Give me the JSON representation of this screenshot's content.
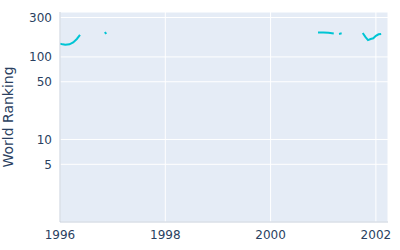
{
  "chart_data": {
    "type": "line",
    "y_label": "World Ranking",
    "log": "y",
    "grid": true,
    "color": "#00c5d4",
    "x": [
      1996.0,
      1996.05,
      1996.1,
      1996.18,
      1996.25,
      1996.32,
      1996.38,
      1996.6,
      1996.85,
      1996.88,
      1998.9,
      2000.9,
      2001.0,
      2001.1,
      2001.2,
      2001.25,
      2001.3,
      2001.35,
      2001.55,
      2001.75,
      2001.8,
      2001.85,
      2001.9,
      2001.95,
      2002.0,
      2002.05,
      2002.1
    ],
    "values": [
      145,
      142,
      140,
      142,
      150,
      165,
      185,
      null,
      200,
      190,
      null,
      198,
      197,
      196,
      192,
      null,
      190,
      193,
      null,
      195,
      175,
      160,
      165,
      168,
      180,
      188,
      190
    ],
    "xlim": [
      1996,
      2002.23
    ],
    "xticks": [
      1996,
      1998,
      2000,
      2002
    ],
    "ylim": [
      1,
      350
    ],
    "yticks": [
      5,
      10,
      50,
      100,
      300
    ]
  }
}
